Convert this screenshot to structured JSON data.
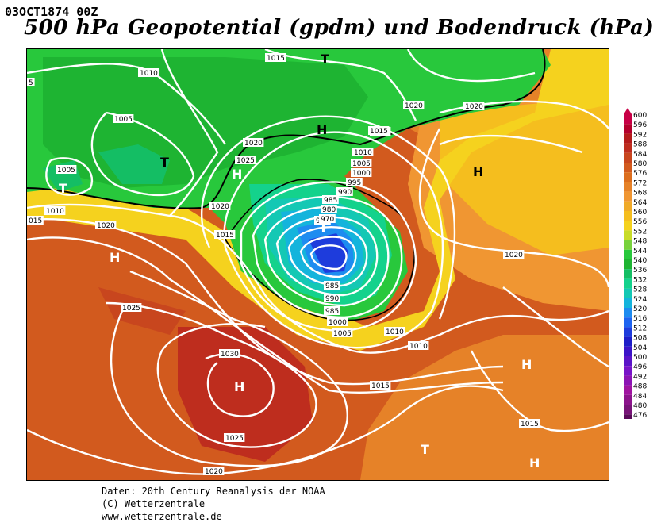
{
  "header": {
    "date_code": "03OCT1874 00Z",
    "title": "500 hPa Geopotential (gpdm) und Bodendruck (hPa)"
  },
  "legend": {
    "values": [
      "600",
      "596",
      "592",
      "588",
      "584",
      "580",
      "576",
      "572",
      "568",
      "564",
      "560",
      "556",
      "552",
      "548",
      "544",
      "540",
      "536",
      "532",
      "528",
      "524",
      "520",
      "516",
      "512",
      "508",
      "504",
      "500",
      "496",
      "492",
      "488",
      "484",
      "480",
      "476"
    ],
    "colors": [
      "#c80046",
      "#b4002d",
      "#b41c1c",
      "#be2d1e",
      "#c8461e",
      "#d25a1e",
      "#dc6e1e",
      "#e68228",
      "#f09632",
      "#f0aa28",
      "#f5be1e",
      "#f5d21e",
      "#c8dc28",
      "#78d23c",
      "#28c83c",
      "#1eb432",
      "#14be64",
      "#14d28c",
      "#14c8b4",
      "#14b4dc",
      "#1e8cf0",
      "#1e64f0",
      "#1e3cdc",
      "#1e1ec8",
      "#3c14c8",
      "#5a14c8",
      "#7814c8",
      "#8c14b4",
      "#a014a0",
      "#8c148c",
      "#781478",
      "#5a0a5a"
    ]
  },
  "map": {
    "isobar_labels": [
      "1015",
      "1010",
      "1005",
      "1005",
      "1010",
      "1015",
      "1020",
      "1020",
      "1025",
      "1020",
      "1015",
      "1010",
      "1005",
      "1000",
      "995",
      "990",
      "985",
      "980",
      "975",
      "970",
      "985",
      "990",
      "985",
      "1000",
      "1005",
      "1010",
      "1010",
      "1015",
      "1020",
      "1025",
      "1030",
      "1025",
      "1020",
      "1015",
      "1020",
      "1020",
      "1015",
      "5",
      "015"
    ],
    "high_symbol": "H",
    "low_symbol": "T"
  },
  "footer": {
    "line1": "Daten: 20th Century Reanalysis der NOAA",
    "line2": "(C) Wetterzentrale",
    "line3": "www.wetterzentrale.de"
  }
}
